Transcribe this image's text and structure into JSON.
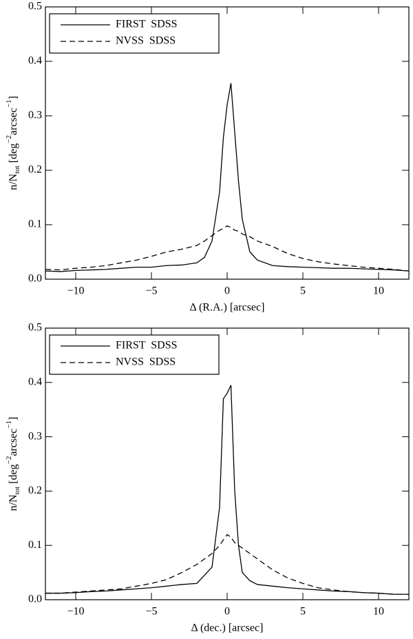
{
  "chart_data": [
    {
      "type": "line",
      "xlabel": "Δ (R.A.) [arcsec]",
      "ylabel": [
        "n/N",
        "tot",
        " [deg",
        "−2",
        "arcsec",
        "−1",
        "]"
      ],
      "x": [
        -12,
        -11,
        -10,
        -9,
        -8,
        -7,
        -6,
        -5,
        -4,
        -3,
        -2,
        -1.5,
        -1,
        -0.5,
        -0.25,
        0,
        0.25,
        0.5,
        0.75,
        1,
        1.5,
        2,
        3,
        4,
        5,
        6,
        7,
        8,
        9,
        10,
        11,
        12
      ],
      "series": [
        {
          "name": "FIRST  SDSS",
          "color": "#000000",
          "dash": "solid",
          "values": [
            0.015,
            0.014,
            0.016,
            0.017,
            0.018,
            0.02,
            0.022,
            0.022,
            0.025,
            0.026,
            0.03,
            0.04,
            0.07,
            0.16,
            0.26,
            0.32,
            0.36,
            0.27,
            0.18,
            0.11,
            0.05,
            0.035,
            0.025,
            0.023,
            0.022,
            0.021,
            0.02,
            0.02,
            0.019,
            0.018,
            0.017,
            0.015
          ]
        },
        {
          "name": "NVSS  SDSS",
          "color": "#000000",
          "dash": "dashed",
          "values": [
            0.018,
            0.017,
            0.02,
            0.022,
            0.025,
            0.03,
            0.035,
            0.042,
            0.05,
            0.055,
            0.062,
            0.07,
            0.08,
            0.09,
            0.093,
            0.098,
            0.095,
            0.09,
            0.088,
            0.083,
            0.078,
            0.07,
            0.06,
            0.047,
            0.038,
            0.032,
            0.028,
            0.025,
            0.022,
            0.02,
            0.018,
            0.015
          ]
        }
      ],
      "xlim": [
        -12,
        12
      ],
      "xticks": [
        {
          "value": -10,
          "label": "−10"
        },
        {
          "value": -5,
          "label": "−5"
        },
        0,
        5,
        10
      ],
      "ylim": [
        0,
        0.5
      ],
      "yticks": [
        {
          "value": 0,
          "label": "0.0"
        },
        0.1,
        0.2,
        0.3,
        0.4,
        0.5
      ],
      "legend": "upper left"
    },
    {
      "type": "line",
      "xlabel": "Δ (dec.) [arcsec]",
      "ylabel": [
        "n/N",
        "tot",
        " [deg",
        "−2",
        "arcsec",
        "−1",
        "]"
      ],
      "x": [
        -12,
        -11,
        -10,
        -9,
        -8,
        -7,
        -6,
        -5,
        -4,
        -3,
        -2,
        -1.5,
        -1,
        -0.5,
        -0.25,
        0,
        0.25,
        0.5,
        0.75,
        1,
        1.5,
        2,
        3,
        4,
        5,
        6,
        7,
        8,
        9,
        10,
        11,
        12
      ],
      "series": [
        {
          "name": "FIRST  SDSS",
          "color": "#000000",
          "dash": "solid",
          "values": [
            0.012,
            0.012,
            0.013,
            0.015,
            0.016,
            0.018,
            0.02,
            0.022,
            0.025,
            0.028,
            0.03,
            0.045,
            0.06,
            0.17,
            0.37,
            0.38,
            0.395,
            0.2,
            0.1,
            0.05,
            0.035,
            0.028,
            0.025,
            0.022,
            0.02,
            0.018,
            0.016,
            0.015,
            0.013,
            0.012,
            0.01,
            0.01
          ]
        },
        {
          "name": "NVSS  SDSS",
          "color": "#000000",
          "dash": "dashed",
          "values": [
            0.012,
            0.012,
            0.014,
            0.016,
            0.018,
            0.02,
            0.025,
            0.03,
            0.037,
            0.05,
            0.065,
            0.075,
            0.085,
            0.1,
            0.11,
            0.12,
            0.115,
            0.105,
            0.1,
            0.095,
            0.085,
            0.075,
            0.055,
            0.04,
            0.03,
            0.022,
            0.018,
            0.015,
            0.013,
            0.012,
            0.01,
            0.01
          ]
        }
      ],
      "xlim": [
        -12,
        12
      ],
      "xticks": [
        {
          "value": -10,
          "label": "−10"
        },
        {
          "value": -5,
          "label": "−5"
        },
        0,
        5,
        10
      ],
      "ylim": [
        0,
        0.5
      ],
      "yticks": [
        {
          "value": 0,
          "label": "0.0"
        },
        0.1,
        0.2,
        0.3,
        0.4,
        0.5
      ],
      "legend": "upper left"
    }
  ]
}
